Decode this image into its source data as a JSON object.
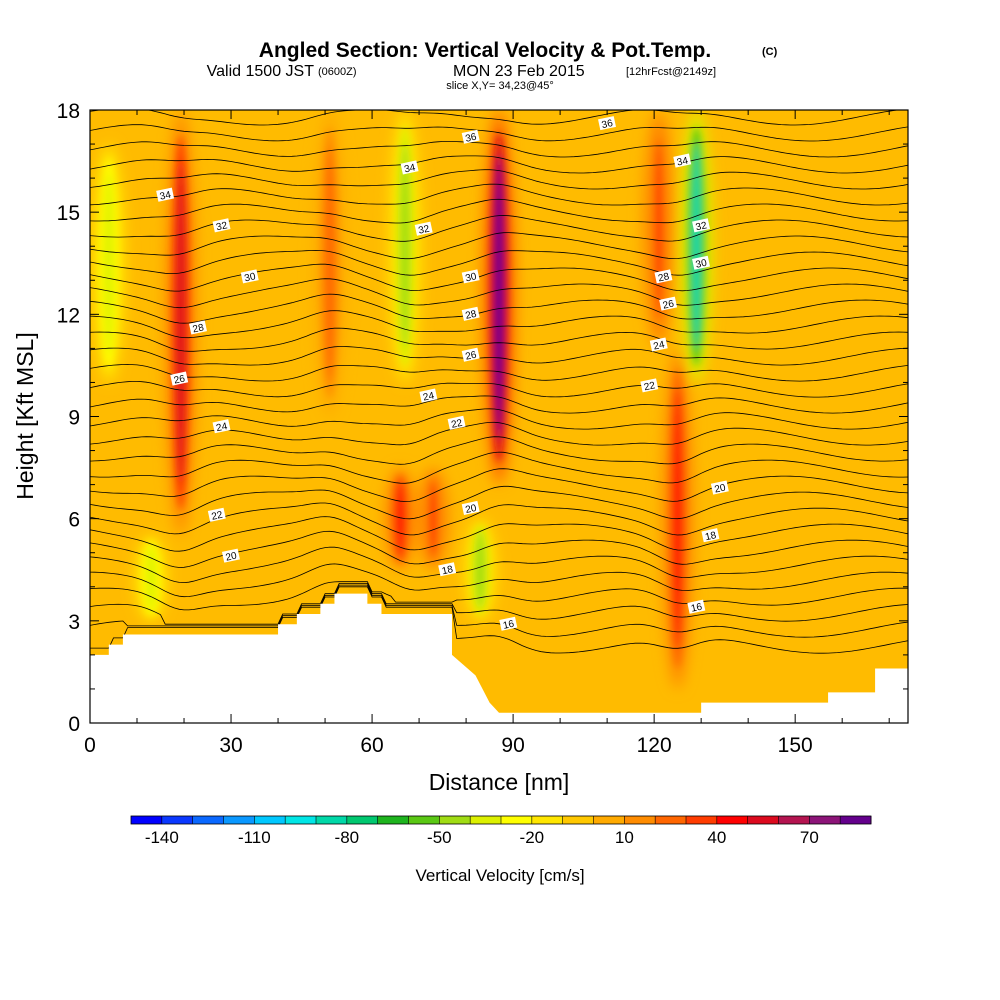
{
  "header": {
    "title": "Angled Section: Vertical Velocity & Pot.Temp.",
    "title_units": "(C)",
    "valid_prefix": "Valid 1500 JST",
    "valid_utc": "(0600Z)",
    "valid_date": "MON 23 Feb 2015",
    "forecast_info": "[12hrFcst@2149z]",
    "slice_info": "slice X,Y= 34,23@45°"
  },
  "chart_data": {
    "type": "heatmap",
    "xlabel": "Distance [nm]",
    "ylabel": "Height [Kft MSL]",
    "xlim": [
      0,
      174
    ],
    "ylim": [
      0,
      18
    ],
    "x_ticks": [
      "0",
      "30",
      "60",
      "90",
      "120",
      "150"
    ],
    "y_ticks": [
      "0",
      "3",
      "6",
      "9",
      "12",
      "15",
      "18"
    ],
    "background_color": "#ffbb00",
    "updraft_bands": [
      {
        "x_center": 19,
        "y_range": [
          5.5,
          18
        ],
        "peak_cm_s": 50,
        "tilt_nm_per_kft": 0.05
      },
      {
        "x_center": 51,
        "y_range": [
          9,
          18
        ],
        "peak_cm_s": 25,
        "tilt_nm_per_kft": 0.0
      },
      {
        "x_center": 66,
        "y_range": [
          4.5,
          7.5
        ],
        "peak_cm_s": 45,
        "tilt_nm_per_kft": 0.0
      },
      {
        "x_center": 73,
        "y_range": [
          4.5,
          7.5
        ],
        "peak_cm_s": 30,
        "tilt_nm_per_kft": 0.0
      },
      {
        "x_center": 87,
        "y_range": [
          7,
          18
        ],
        "peak_cm_s": 80,
        "tilt_nm_per_kft": 0.0
      },
      {
        "x_center": 125,
        "y_range": [
          1,
          11
        ],
        "peak_cm_s": 40,
        "tilt_nm_per_kft": 0.0
      },
      {
        "x_center": 121,
        "y_range": [
          11,
          18
        ],
        "peak_cm_s": 30,
        "tilt_nm_per_kft": 0.0
      }
    ],
    "downdraft_bands": [
      {
        "x_center": 4,
        "y_range": [
          10,
          17
        ],
        "peak_cm_s": -35
      },
      {
        "x_center": 13,
        "y_range": [
          3,
          5.5
        ],
        "peak_cm_s": -35
      },
      {
        "x_center": 67,
        "y_range": [
          10,
          18
        ],
        "peak_cm_s": -45
      },
      {
        "x_center": 83,
        "y_range": [
          3,
          6
        ],
        "peak_cm_s": -50
      },
      {
        "x_center": 129,
        "y_range": [
          10,
          18
        ],
        "peak_cm_s": -85
      }
    ],
    "terrain_kft": [
      [
        0,
        2.0
      ],
      [
        4,
        2.0
      ],
      [
        4,
        2.3
      ],
      [
        7,
        2.3
      ],
      [
        7,
        2.6
      ],
      [
        40,
        2.6
      ],
      [
        40,
        2.9
      ],
      [
        44,
        2.9
      ],
      [
        44,
        3.2
      ],
      [
        49,
        3.2
      ],
      [
        49,
        3.5
      ],
      [
        52,
        3.5
      ],
      [
        52,
        3.8
      ],
      [
        59,
        3.8
      ],
      [
        59,
        3.5
      ],
      [
        62,
        3.5
      ],
      [
        62,
        3.2
      ],
      [
        77,
        3.2
      ],
      [
        77,
        2.0
      ],
      [
        82,
        1.4
      ],
      [
        85,
        0.6
      ],
      [
        87,
        0.3
      ],
      [
        130,
        0.3
      ],
      [
        130,
        0.6
      ],
      [
        157,
        0.6
      ],
      [
        157,
        0.9
      ],
      [
        167,
        0.9
      ],
      [
        167,
        1.6
      ],
      [
        174,
        1.6
      ]
    ],
    "contour_labels": [
      {
        "text": "34",
        "x": 16,
        "y": 15.5
      },
      {
        "text": "32",
        "x": 28,
        "y": 14.6
      },
      {
        "text": "30",
        "x": 34,
        "y": 13.1
      },
      {
        "text": "28",
        "x": 23,
        "y": 11.6
      },
      {
        "text": "26",
        "x": 19,
        "y": 10.1
      },
      {
        "text": "24",
        "x": 28,
        "y": 8.7
      },
      {
        "text": "22",
        "x": 27,
        "y": 6.1
      },
      {
        "text": "20",
        "x": 30,
        "y": 4.9
      },
      {
        "text": "34",
        "x": 68,
        "y": 16.3
      },
      {
        "text": "32",
        "x": 71,
        "y": 14.5
      },
      {
        "text": "36",
        "x": 81,
        "y": 17.2
      },
      {
        "text": "30",
        "x": 81,
        "y": 13.1
      },
      {
        "text": "28",
        "x": 81,
        "y": 12.0
      },
      {
        "text": "26",
        "x": 81,
        "y": 10.8
      },
      {
        "text": "24",
        "x": 72,
        "y": 9.6
      },
      {
        "text": "22",
        "x": 78,
        "y": 8.8
      },
      {
        "text": "20",
        "x": 81,
        "y": 6.3
      },
      {
        "text": "18",
        "x": 76,
        "y": 4.5
      },
      {
        "text": "16",
        "x": 89,
        "y": 2.9
      },
      {
        "text": "36",
        "x": 110,
        "y": 17.6
      },
      {
        "text": "34",
        "x": 126,
        "y": 16.5
      },
      {
        "text": "32",
        "x": 130,
        "y": 14.6
      },
      {
        "text": "30",
        "x": 130,
        "y": 13.5
      },
      {
        "text": "28",
        "x": 122,
        "y": 13.1
      },
      {
        "text": "26",
        "x": 123,
        "y": 12.3
      },
      {
        "text": "24",
        "x": 121,
        "y": 11.1
      },
      {
        "text": "22",
        "x": 119,
        "y": 9.9
      },
      {
        "text": "20",
        "x": 134,
        "y": 6.9
      },
      {
        "text": "18",
        "x": 132,
        "y": 5.5
      },
      {
        "text": "16",
        "x": 129,
        "y": 3.4
      }
    ]
  },
  "colorbar": {
    "label": "Vertical Velocity [cm/s]",
    "colors": [
      "#0000ff",
      "#0a38ff",
      "#0a68ff",
      "#0a98ff",
      "#00c8ff",
      "#00e6e6",
      "#00d8a8",
      "#00c870",
      "#1eb41e",
      "#5ac814",
      "#a0dc14",
      "#dcf000",
      "#ffff00",
      "#ffe600",
      "#ffc800",
      "#ffaa00",
      "#ff8c00",
      "#ff6600",
      "#ff3c00",
      "#ff0000",
      "#dc0a1e",
      "#b41450",
      "#8c1478",
      "#64008c"
    ],
    "tick_labels": [
      "-140",
      "-110",
      "-80",
      "-50",
      "-20",
      "10",
      "40",
      "70"
    ]
  }
}
